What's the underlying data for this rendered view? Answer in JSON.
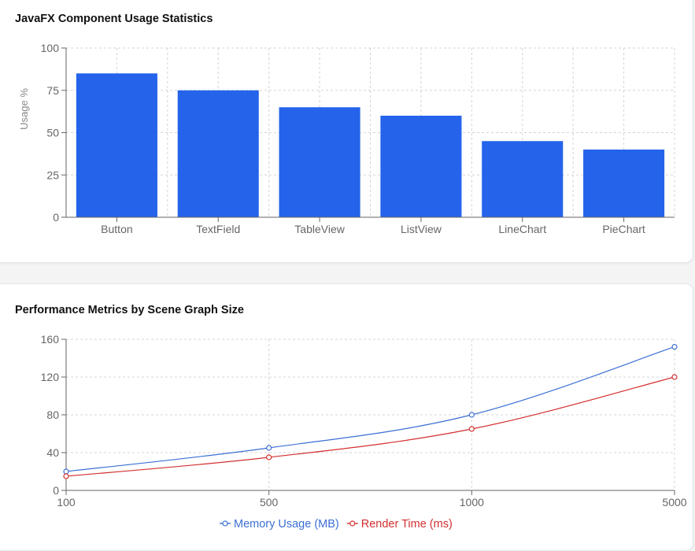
{
  "colors": {
    "bar": "#2563eb",
    "memory": "#3b6fd4",
    "render": "#d32f2f",
    "grid": "#d4d4d4",
    "axis": "#666666"
  },
  "charts": [
    {
      "title": "JavaFX Component Usage Statistics"
    },
    {
      "title": "Performance Metrics by Scene Graph Size"
    }
  ],
  "chart_data": [
    {
      "type": "bar",
      "title": "JavaFX Component Usage Statistics",
      "categories": [
        "Button",
        "TextField",
        "TableView",
        "ListView",
        "LineChart",
        "PieChart"
      ],
      "values": [
        85,
        75,
        65,
        60,
        45,
        40
      ],
      "ylabel": "Usage %",
      "xlabel": "",
      "ylim": [
        0,
        100
      ],
      "yticks": [
        0,
        25,
        50,
        75,
        100
      ],
      "grid": true
    },
    {
      "type": "line",
      "title": "Performance Metrics by Scene Graph Size",
      "x": [
        "100",
        "500",
        "1000",
        "5000"
      ],
      "series": [
        {
          "name": "Memory Usage (MB)",
          "values": [
            20,
            45,
            80,
            152
          ]
        },
        {
          "name": "Render Time (ms)",
          "values": [
            15,
            35,
            65,
            120
          ]
        }
      ],
      "xlabel": "",
      "ylabel": "",
      "ylim": [
        0,
        160
      ],
      "yticks": [
        0,
        40,
        80,
        120,
        160
      ],
      "grid": true,
      "legend": "bottom"
    }
  ]
}
